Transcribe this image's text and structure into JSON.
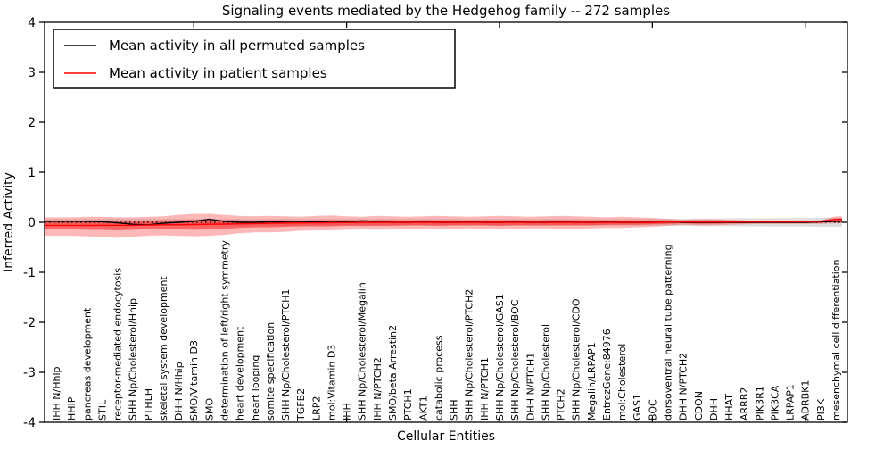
{
  "chart_data": {
    "type": "line",
    "title": "Signaling events mediated by the Hedgehog family -- 272 samples",
    "xlabel": "Cellular Entities",
    "ylabel": "Inferred Activity",
    "ylim": [
      -4,
      4
    ],
    "yticks": [
      4,
      3,
      2,
      1,
      0,
      -1,
      -2,
      -3,
      -4
    ],
    "xtick_entities": [
      10,
      20,
      30,
      40,
      50
    ],
    "grid": false,
    "legend_position": "upper left",
    "zero_line": 0,
    "colors": {
      "permuted_line": "#000000",
      "patient_line": "#ff0000",
      "patient_band_outer": "rgba(255,0,0,0.28)",
      "patient_band_inner": "rgba(255,0,0,0.45)",
      "permuted_band": "rgba(0,0,0,0.13)",
      "axis": "#000000"
    },
    "categories": [
      "IHH N/Hhip",
      "HHIP",
      "pancreas development",
      "STIL",
      "receptor-mediated endocytosis",
      "SHH Np/Cholesterol/Hhip",
      "PTHLH",
      "skeletal system development",
      "DHH N/Hhip",
      "SMO/Vitamin D3",
      "SMO",
      "determination of left/right symmetry",
      "heart development",
      "heart looping",
      "somite specification",
      "SHH Np/Cholesterol/PTCH1",
      "TGFB2",
      "LRP2",
      "mol:Vitamin D3",
      "IHH",
      "SHH Np/Cholesterol/Megalin",
      "IHH N/PTCH2",
      "SMO/beta Arrestin2",
      "PTCH1",
      "AKT1",
      "catabolic process",
      "SHH",
      "SHH Np/Cholesterol/PTCH2",
      "IHH N/PTCH1",
      "SHH Np/Cholesterol/GAS1",
      "SHH Np/Cholesterol/BOC",
      "DHH N/PTCH1",
      "SHH Np/Cholesterol",
      "PTCH2",
      "SHH Np/Cholesterol/CDO",
      "Megalin/LRPAP1",
      "EntrezGene:84976",
      "mol:Cholesterol",
      "GAS1",
      "BOC",
      "dorsoventral neural tube patterning",
      "DHH N/PTCH2",
      "CDON",
      "DHH",
      "HHAT",
      "ARRB2",
      "PIK3R1",
      "PIK3CA",
      "LRPAP1",
      "ADRBK1",
      "PI3K",
      "mesenchymal cell differentiation"
    ],
    "series": [
      {
        "name": "Mean activity in all permuted samples",
        "color": "#000000",
        "values": [
          0.02,
          0.02,
          0.02,
          0.01,
          -0.01,
          -0.04,
          -0.05,
          -0.02,
          0.0,
          0.02,
          0.06,
          0.02,
          0.0,
          0.0,
          0.01,
          0.0,
          0.0,
          0.01,
          0.0,
          0.01,
          0.03,
          0.02,
          0.0,
          0.0,
          0.01,
          0.0,
          0.0,
          0.01,
          0.0,
          0.0,
          0.01,
          0.0,
          0.0,
          0.01,
          0.0,
          0.0,
          0.01,
          0.0,
          0.0,
          0.0,
          0.01,
          0.0,
          0.0,
          0.0,
          0.0,
          0.0,
          0.0,
          0.0,
          0.0,
          0.0,
          0.01,
          0.02
        ]
      },
      {
        "name": "Mean activity in patient samples",
        "color": "#ff0000",
        "values": [
          -0.065,
          -0.065,
          -0.065,
          -0.06,
          -0.06,
          -0.06,
          -0.055,
          -0.05,
          -0.05,
          -0.045,
          -0.04,
          -0.035,
          -0.03,
          -0.025,
          -0.02,
          -0.015,
          -0.012,
          -0.01,
          -0.008,
          -0.005,
          -0.003,
          -0.002,
          0.0,
          0.0,
          0.0,
          0.0,
          0.0,
          0.0,
          0.0,
          0.0,
          0.0,
          0.0,
          0.0,
          0.0,
          0.0,
          0.0,
          0.0,
          0.0,
          0.0,
          0.0,
          0.005,
          0.008,
          0.008,
          0.008,
          0.008,
          0.01,
          0.01,
          0.01,
          0.01,
          0.012,
          0.02,
          0.06
        ]
      }
    ],
    "bands": [
      {
        "name": "permuted-std-band",
        "colorKey": "permuted_band",
        "upper": [
          0.065,
          0.065,
          0.065,
          0.065,
          0.065,
          0.065,
          0.065,
          0.065,
          0.065,
          0.065,
          0.065,
          0.065,
          0.065,
          0.065,
          0.065,
          0.065,
          0.065,
          0.065,
          0.065,
          0.065,
          0.065,
          0.065,
          0.065,
          0.065,
          0.065,
          0.065,
          0.065,
          0.065,
          0.065,
          0.065,
          0.065,
          0.065,
          0.065,
          0.065,
          0.065,
          0.065,
          0.065,
          0.065,
          0.065,
          0.065,
          0.07,
          0.07,
          0.075,
          0.075,
          0.08,
          0.08,
          0.08,
          0.085,
          0.085,
          0.085,
          0.09,
          0.09
        ],
        "lower": [
          -0.065,
          -0.065,
          -0.065,
          -0.065,
          -0.065,
          -0.065,
          -0.065,
          -0.065,
          -0.065,
          -0.065,
          -0.065,
          -0.065,
          -0.065,
          -0.065,
          -0.065,
          -0.065,
          -0.065,
          -0.065,
          -0.065,
          -0.065,
          -0.065,
          -0.065,
          -0.065,
          -0.065,
          -0.065,
          -0.065,
          -0.065,
          -0.065,
          -0.065,
          -0.065,
          -0.065,
          -0.065,
          -0.065,
          -0.065,
          -0.065,
          -0.065,
          -0.065,
          -0.065,
          -0.065,
          -0.065,
          -0.07,
          -0.07,
          -0.075,
          -0.075,
          -0.08,
          -0.08,
          -0.08,
          -0.085,
          -0.085,
          -0.085,
          -0.09,
          -0.09
        ]
      },
      {
        "name": "patient-band-outer",
        "colorKey": "patient_band_outer",
        "upper": [
          0.1,
          0.1,
          0.11,
          0.11,
          0.1,
          0.1,
          0.11,
          0.12,
          0.15,
          0.17,
          0.17,
          0.15,
          0.13,
          0.12,
          0.13,
          0.12,
          0.11,
          0.13,
          0.14,
          0.12,
          0.11,
          0.13,
          0.12,
          0.11,
          0.12,
          0.13,
          0.12,
          0.11,
          0.12,
          0.13,
          0.12,
          0.11,
          0.12,
          0.13,
          0.12,
          0.11,
          0.1,
          0.11,
          0.1,
          0.09,
          0.07,
          0.05,
          0.06,
          0.06,
          0.05,
          0.04,
          0.03,
          0.03,
          0.03,
          0.03,
          0.04,
          0.12
        ],
        "lower": [
          -0.27,
          -0.27,
          -0.28,
          -0.29,
          -0.31,
          -0.29,
          -0.27,
          -0.26,
          -0.27,
          -0.28,
          -0.27,
          -0.25,
          -0.22,
          -0.2,
          -0.2,
          -0.19,
          -0.17,
          -0.16,
          -0.16,
          -0.15,
          -0.14,
          -0.15,
          -0.14,
          -0.13,
          -0.13,
          -0.14,
          -0.13,
          -0.12,
          -0.13,
          -0.14,
          -0.13,
          -0.12,
          -0.12,
          -0.13,
          -0.13,
          -0.12,
          -0.11,
          -0.11,
          -0.1,
          -0.09,
          -0.07,
          -0.05,
          -0.06,
          -0.06,
          -0.05,
          -0.04,
          -0.03,
          -0.03,
          -0.03,
          -0.03,
          -0.03,
          -0.02
        ]
      },
      {
        "name": "patient-band-inner",
        "colorKey": "patient_band_inner",
        "upper": [
          0.01,
          0.01,
          0.02,
          0.02,
          0.01,
          0.01,
          0.02,
          0.03,
          0.04,
          0.05,
          0.05,
          0.04,
          0.04,
          0.03,
          0.04,
          0.04,
          0.03,
          0.04,
          0.04,
          0.04,
          0.03,
          0.04,
          0.04,
          0.03,
          0.04,
          0.04,
          0.04,
          0.03,
          0.04,
          0.04,
          0.04,
          0.03,
          0.04,
          0.04,
          0.04,
          0.03,
          0.03,
          0.03,
          0.03,
          0.03,
          0.02,
          0.02,
          0.02,
          0.02,
          0.02,
          0.02,
          0.01,
          0.01,
          0.01,
          0.01,
          0.02,
          0.07
        ],
        "lower": [
          -0.14,
          -0.14,
          -0.15,
          -0.15,
          -0.16,
          -0.15,
          -0.14,
          -0.13,
          -0.14,
          -0.15,
          -0.14,
          -0.13,
          -0.11,
          -0.1,
          -0.1,
          -0.09,
          -0.08,
          -0.08,
          -0.08,
          -0.07,
          -0.07,
          -0.07,
          -0.07,
          -0.06,
          -0.06,
          -0.07,
          -0.06,
          -0.06,
          -0.06,
          -0.07,
          -0.06,
          -0.06,
          -0.06,
          -0.06,
          -0.06,
          -0.06,
          -0.05,
          -0.05,
          -0.05,
          -0.04,
          -0.03,
          -0.02,
          -0.03,
          -0.03,
          -0.02,
          -0.02,
          -0.01,
          -0.01,
          -0.01,
          -0.01,
          -0.01,
          0.03
        ]
      }
    ]
  }
}
